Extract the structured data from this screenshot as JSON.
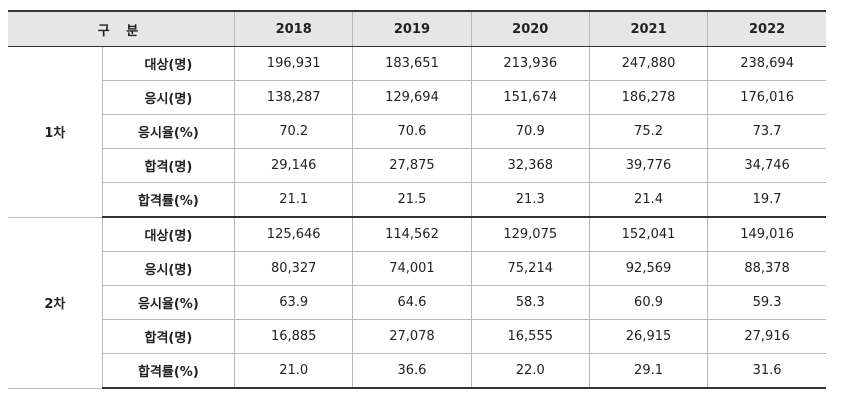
{
  "table": {
    "header": {
      "corner": "구 분",
      "years": [
        "2018",
        "2019",
        "2020",
        "2021",
        "2022"
      ]
    },
    "sections": [
      {
        "name": "1차",
        "rows": [
          {
            "label": "대상(명)",
            "values": [
              "196,931",
              "183,651",
              "213,936",
              "247,880",
              "238,694"
            ]
          },
          {
            "label": "응시(명)",
            "values": [
              "138,287",
              "129,694",
              "151,674",
              "186,278",
              "176,016"
            ]
          },
          {
            "label": "응시율(%)",
            "values": [
              "70.2",
              "70.6",
              "70.9",
              "75.2",
              "73.7"
            ]
          },
          {
            "label": "합격(명)",
            "values": [
              "29,146",
              "27,875",
              "32,368",
              "39,776",
              "34,746"
            ]
          },
          {
            "label": "합격률(%)",
            "values": [
              "21.1",
              "21.5",
              "21.3",
              "21.4",
              "19.7"
            ]
          }
        ]
      },
      {
        "name": "2차",
        "rows": [
          {
            "label": "대상(명)",
            "values": [
              "125,646",
              "114,562",
              "129,075",
              "152,041",
              "149,016"
            ]
          },
          {
            "label": "응시(명)",
            "values": [
              "80,327",
              "74,001",
              "75,214",
              "92,569",
              "88,378"
            ]
          },
          {
            "label": "응시율(%)",
            "values": [
              "63.9",
              "64.6",
              "58.3",
              "60.9",
              "59.3"
            ]
          },
          {
            "label": "합격(명)",
            "values": [
              "16,885",
              "27,078",
              "16,555",
              "26,915",
              "27,916"
            ]
          },
          {
            "label": "합격률(%)",
            "values": [
              "21.0",
              "36.6",
              "22.0",
              "29.1",
              "31.6"
            ]
          }
        ]
      }
    ]
  }
}
